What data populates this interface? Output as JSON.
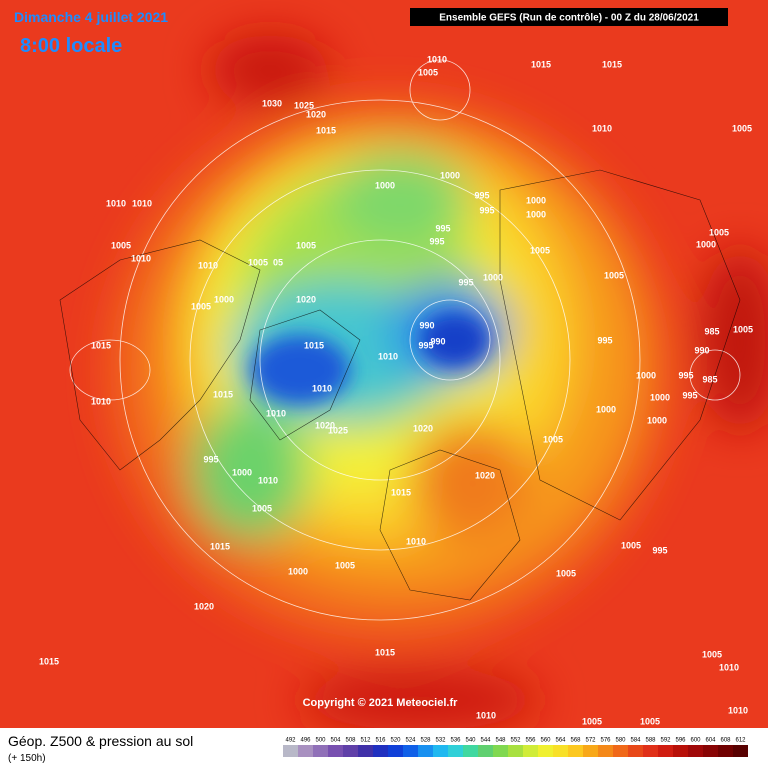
{
  "header": {
    "date": "Dimanche 4 juillet 2021",
    "time": "8:00 locale",
    "run": "Ensemble GEFS  (Run de contrôle)  -  00 Z du 28/06/2021"
  },
  "map": {
    "copyright": "Copyright © 2021 Meteociel.fr",
    "pressure_labels": [
      "1010",
      "1005",
      "1015",
      "1015",
      "1030",
      "1025",
      "1020",
      "1015",
      "1010",
      "1005",
      "1000",
      "1000",
      "995",
      "995",
      "1000",
      "1000",
      "1010",
      "1010",
      "1005",
      "1010",
      "1010",
      "1005",
      "1005",
      "05",
      "995",
      "995",
      "1005",
      "1005",
      "1000",
      "1005",
      "1000",
      "1005",
      "1020",
      "995",
      "1000",
      "990",
      "990",
      "995",
      "1015",
      "1010",
      "995",
      "985",
      "1005",
      "990",
      "1015",
      "1000",
      "995",
      "985",
      "995",
      "1010",
      "1015",
      "1010",
      "1000",
      "1000",
      "1000",
      "1010",
      "1020",
      "1025",
      "1020",
      "1005",
      "995",
      "1000",
      "1010",
      "1020",
      "1015",
      "1005",
      "1010",
      "1015",
      "1005",
      "995",
      "1005",
      "1000",
      "1005",
      "1020",
      "1005",
      "1010",
      "1015",
      "1015",
      "1005",
      "1005",
      "1010",
      "1010"
    ]
  },
  "legend": {
    "title": "Géop. Z500 & pression au sol",
    "lead": "(+ 150h)",
    "scale": [
      492,
      496,
      500,
      504,
      508,
      512,
      516,
      520,
      524,
      528,
      532,
      536,
      540,
      544,
      548,
      552,
      556,
      560,
      564,
      568,
      572,
      576,
      580,
      584,
      588,
      592,
      596,
      600,
      604,
      608,
      612
    ]
  }
}
